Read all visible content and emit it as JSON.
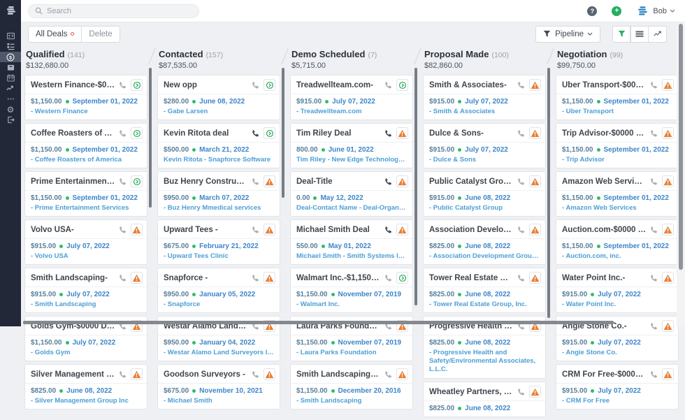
{
  "topbar": {
    "search_placeholder": "Search",
    "user_name": "Bob"
  },
  "toolbar": {
    "all_deals_label": "All Deals",
    "delete_label": "Delete",
    "pipeline_label": "Pipeline"
  },
  "icons": {
    "topbar": [
      "search-icon",
      "help-icon",
      "add-icon",
      "avatar-sphere-icon",
      "chevron-down-icon"
    ],
    "toolbar": [
      "funnel-dark-icon",
      "funnel-green-icon",
      "list-view-icon",
      "chart-view-icon"
    ],
    "sidebar": [
      "logo-sphere-icon",
      "contacts-card-icon",
      "accounts-list-icon",
      "deals-dollar-icon",
      "products-box-icon",
      "calendar-icon",
      "reports-trend-icon",
      "more-ellipsis-icon",
      "settings-gear-icon",
      "logout-icon"
    ],
    "card": [
      "phone-icon",
      "activity-status-icon",
      "warning-icon"
    ]
  },
  "colors": {
    "accent_green": "#27ae60",
    "warning_orange": "#e87f35",
    "link_blue": "#4c9fd6",
    "date_blue": "#3c86ca",
    "amount_steel": "#567f9b",
    "sidebar_bg": "#222837"
  },
  "sidebar": {
    "selected_item": "deals",
    "items": [
      "contacts",
      "accounts",
      "deals",
      "products",
      "calendar",
      "reports",
      "more",
      "settings",
      "logout"
    ]
  },
  "board": {
    "columns": [
      {
        "name": "Qualified",
        "count": "(141)",
        "total": "$132,680.00",
        "cards": [
          {
            "title": "Western Finance-$0000 Dea...",
            "amount": "$1,150.00",
            "date": "September 01, 2022",
            "org": "- Western Finance",
            "status": "in-progress"
          },
          {
            "title": "Coffee Roasters of Americ...",
            "amount": "$1,150.00",
            "date": "September 01, 2022",
            "org": "- Coffee Roasters of America",
            "status": "in-progress"
          },
          {
            "title": "Prime Entertainment Servi...",
            "amount": "$1,150.00",
            "date": "September 01, 2022",
            "org": "- Prime Entertainment Services",
            "status": "in-progress"
          },
          {
            "title": "Volvo USA-",
            "amount": "$915.00",
            "date": "July 07, 2022",
            "org": "- Volvo USA",
            "status": "warning"
          },
          {
            "title": "Smith Landscaping-",
            "amount": "$915.00",
            "date": "July 07, 2022",
            "org": "- Smith Landscaping",
            "status": "warning"
          },
          {
            "title": "Golds Gym-$0000 Deal",
            "amount": "$1,150.00",
            "date": "July 07, 2022",
            "org": "- Golds Gym",
            "status": "warning"
          },
          {
            "title": "Silver Management Group I...",
            "amount": "$825.00",
            "date": "June 08, 2022",
            "org": "- Silver Management Group Inc",
            "status": "warning"
          }
        ]
      },
      {
        "name": "Contacted",
        "count": "(157)",
        "total": "$87,535.00",
        "cards": [
          {
            "title": "New opp",
            "amount": "$280.00",
            "date": "June 08, 2022",
            "org": "- Gabe Larsen",
            "status": "in-progress"
          },
          {
            "title": "Kevin Ritota deal",
            "amount": "$500.00",
            "date": "March 21, 2022",
            "org": "Kevin Ritota - Snapforce Software",
            "status": "in-progress",
            "phone_dark": true
          },
          {
            "title": "Buz Henry Construction -",
            "amount": "$950.00",
            "date": "March 07, 2022",
            "org": "- Buz Henry Mmedical services",
            "status": "warning"
          },
          {
            "title": "Upward Tees -",
            "amount": "$675.00",
            "date": "February 21, 2022",
            "org": "- Upward Tees Clinic",
            "status": "warning"
          },
          {
            "title": "Snapforce -",
            "amount": "$950.00",
            "date": "January 05, 2022",
            "org": "- Snapforce",
            "status": "warning"
          },
          {
            "title": "Westar Alamo Land Surveyo...",
            "amount": "$950.00",
            "date": "January 04, 2022",
            "org": "- Westar Alamo Land Surveyors Inc",
            "status": "warning"
          },
          {
            "title": "Goodson Surveyors -",
            "amount": "$675.00",
            "date": "November 10, 2021",
            "org": "- Michael Smith",
            "status": "warning"
          }
        ]
      },
      {
        "name": "Demo Scheduled",
        "count": "(7)",
        "total": "$5,715.00",
        "cards": [
          {
            "title": "Treadwellteam.com-",
            "amount": "$915.00",
            "date": "July 07, 2022",
            "org": "- Treadwellteam.com",
            "status": "in-progress"
          },
          {
            "title": "Tim Riley Deal",
            "amount": "800.00",
            "date": "June 01, 2022",
            "org": "Tim Riley - New Edge Technology Inc.",
            "status": "warning",
            "phone_dark": true
          },
          {
            "title": "Deal-Title",
            "amount": "0.00",
            "date": "May 12, 2022",
            "org": "Deal-Contact Name - Deal-Organization",
            "status": "warning",
            "phone_dark": true
          },
          {
            "title": "Michael Smith Deal",
            "amount": "550.00",
            "date": "May 01, 2022",
            "org": "Michael Smith - Smith Systems Inc.",
            "status": "warning",
            "phone_dark": true
          },
          {
            "title": "Walmart Inc.-$1,150 Deal",
            "amount": "$1,150.00",
            "date": "November 07, 2019",
            "org": "- Walmart Inc.",
            "status": "in-progress"
          },
          {
            "title": "Laura Parks Foundation-$2...",
            "amount": "$1,150.00",
            "date": "November 07, 2019",
            "org": "- Laura Parks Foundation",
            "status": "warning"
          },
          {
            "title": "Smith Landscaping-$0000 D...",
            "amount": "$1,150.00",
            "date": "December 20, 2016",
            "org": "- Smith Landscaping",
            "status": "warning"
          }
        ]
      },
      {
        "name": "Proposal Made",
        "count": "(100)",
        "total": "$82,860.00",
        "cards": [
          {
            "title": "Smith & Associates-",
            "amount": "$915.00",
            "date": "July 07, 2022",
            "org": "- Smith & Associates",
            "status": "warning"
          },
          {
            "title": "Dulce & Sons-",
            "amount": "$915.00",
            "date": "July 07, 2022",
            "org": "- Dulce & Sons",
            "status": "warning"
          },
          {
            "title": "Public Catalyst Group-",
            "amount": "$915.00",
            "date": "June 08, 2022",
            "org": "- Public Catalyst Group",
            "status": "warning"
          },
          {
            "title": "Association Development G...",
            "amount": "$825.00",
            "date": "June 08, 2022",
            "org": "- Association Development Group, Inc.",
            "status": "warning"
          },
          {
            "title": "Tower Real Estate Group, ...",
            "amount": "$825.00",
            "date": "June 08, 2022",
            "org": "- Tower Real Estate Group, Inc.",
            "status": "warning"
          },
          {
            "title": "Progressive Health and Sa...",
            "amount": "$825.00",
            "date": "June 08, 2022",
            "org": "- Progressive Health and Safety/Environmental Associates, L.L.C.",
            "status": "warning",
            "org_wrap": true
          },
          {
            "title": "Wheatley Partners, L.P.-",
            "amount": "$825.00",
            "date": "June 08, 2022",
            "org": "",
            "status": "warning"
          }
        ]
      },
      {
        "name": "Negotiation",
        "count": "(99)",
        "total": "$99,750.00",
        "cards": [
          {
            "title": "Uber Transport-$0000 Deal",
            "amount": "$1,150.00",
            "date": "September 01, 2022",
            "org": "- Uber Transport",
            "status": "warning"
          },
          {
            "title": "Trip Advisor-$0000 Deal",
            "amount": "$1,150.00",
            "date": "September 01, 2022",
            "org": "- Trip Advisor",
            "status": "warning"
          },
          {
            "title": "Amazon Web Services-$0000...",
            "amount": "$1,150.00",
            "date": "September 01, 2022",
            "org": "- Amazon Web Services",
            "status": "warning"
          },
          {
            "title": "Auction.com-$0000 Deal",
            "amount": "$1,150.00",
            "date": "September 01, 2022",
            "org": "- Auction.com, inc.",
            "status": "warning"
          },
          {
            "title": "Water Point Inc.-",
            "amount": "$915.00",
            "date": "July 07, 2022",
            "org": "- Water Point Inc.",
            "status": "warning"
          },
          {
            "title": "Angie Stone Co.-",
            "amount": "$915.00",
            "date": "July 07, 2022",
            "org": "- Angie Stone Co.",
            "status": "warning"
          },
          {
            "title": "CRM For Free-$0000 Deal",
            "amount": "$915.00",
            "date": "July 07, 2022",
            "org": "- CRM For Free",
            "status": "warning"
          }
        ]
      }
    ]
  }
}
